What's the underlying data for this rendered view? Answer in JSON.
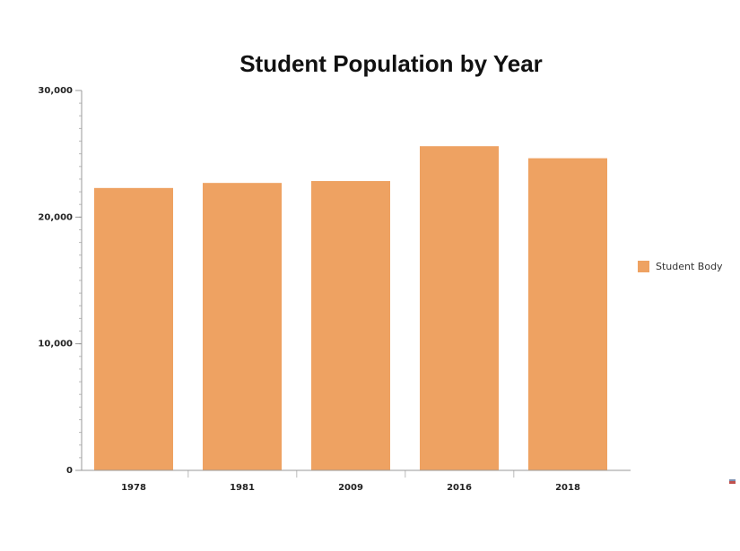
{
  "colors": {
    "bar": "#eea262",
    "axis": "#999999",
    "text": "#222222"
  },
  "chart_data": {
    "type": "bar",
    "title": "Student Population by Year",
    "categories": [
      "1978",
      "1981",
      "2009",
      "2016",
      "2018"
    ],
    "series": [
      {
        "name": "Student Body",
        "values": [
          22300,
          22700,
          22850,
          25600,
          24650
        ]
      }
    ],
    "ylim": [
      0,
      30000
    ],
    "yticks": [
      0,
      10000,
      20000,
      30000
    ],
    "ytick_labels": [
      "0",
      "10,000",
      "20,000",
      "30,000"
    ],
    "xlabel": "",
    "ylabel": "",
    "grid": false,
    "legend_position": "right"
  }
}
